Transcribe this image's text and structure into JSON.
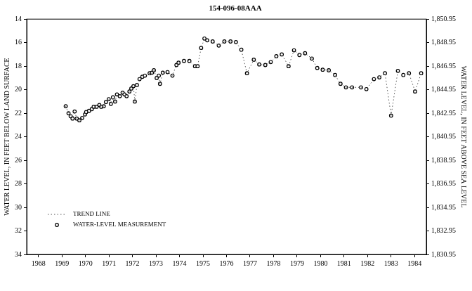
{
  "chart_data": {
    "type": "scatter",
    "title": "154-096-08AAA",
    "y_label": "WATER LEVEL, IN FEET BELOW LAND SURFACE",
    "y2_label": "WATER LEVEL, IN FEET ABOVE SEA LEVEL",
    "x": [
      1969.66,
      1969.78,
      1969.87,
      1969.95,
      1970.04,
      1970.13,
      1970.24,
      1970.36,
      1970.48,
      1970.53,
      1970.65,
      1970.77,
      1970.85,
      1970.97,
      1971.09,
      1971.17,
      1971.28,
      1971.37,
      1971.49,
      1971.58,
      1971.67,
      1971.76,
      1971.84,
      1971.96,
      1972.08,
      1972.16,
      1972.25,
      1972.37,
      1972.45,
      1972.54,
      1972.6,
      1972.69,
      1972.8,
      1972.92,
      1973.03,
      1973.23,
      1973.33,
      1973.41,
      1973.53,
      1973.62,
      1973.67,
      1973.79,
      1973.99,
      1974.2,
      1974.37,
      1974.46,
      1974.69,
      1974.92,
      1975.16,
      1975.27,
      1975.42,
      1975.56,
      1975.68,
      1975.91,
      1976.17,
      1976.41,
      1976.67,
      1976.9,
      1977.13,
      1977.37,
      1977.66,
      1977.89,
      1978.15,
      1978.38,
      1978.62,
      1978.85,
      1979.14,
      1979.37,
      1979.6,
      1979.84,
      1980.13,
      1980.36,
      1980.59,
      1980.85,
      1981.12,
      1981.35,
      1981.58,
      1981.84,
      1982.22,
      1982.45,
      1982.77,
      1983.0,
      1983.24,
      1983.5,
      1983.79,
      1984.02,
      1984.26,
      1984.52,
      1984.78
    ],
    "series": [
      {
        "name": "TREND LINE",
        "color": "#555555",
        "line_style": "dotted",
        "marker": "none",
        "values": [
          21.4,
          22.0,
          22.25,
          22.45,
          21.85,
          22.45,
          22.6,
          22.4,
          22.1,
          21.9,
          21.8,
          21.65,
          21.45,
          21.45,
          21.3,
          21.45,
          21.4,
          21.05,
          20.8,
          21.2,
          20.65,
          21.0,
          20.4,
          20.55,
          20.25,
          20.4,
          20.55,
          20.15,
          19.9,
          19.7,
          21.0,
          19.6,
          19.1,
          18.9,
          18.8,
          18.6,
          18.55,
          18.35,
          19.0,
          18.8,
          19.5,
          18.55,
          18.5,
          18.8,
          17.9,
          17.7,
          17.55,
          17.55,
          18.0,
          18.0,
          16.45,
          15.65,
          15.8,
          15.9,
          16.25,
          15.9,
          15.9,
          15.95,
          16.6,
          18.6,
          17.45,
          17.85,
          17.9,
          17.65,
          17.15,
          17.0,
          18.0,
          16.65,
          17.05,
          16.9,
          17.35,
          18.15,
          18.3,
          18.35,
          18.75,
          19.5,
          19.8,
          19.8,
          19.8,
          19.95,
          19.1,
          18.95,
          18.6,
          22.2,
          18.4,
          18.75,
          18.6,
          20.15,
          18.6
        ]
      },
      {
        "name": "WATER-LEVEL MEASUREMENT",
        "color": "#000000",
        "line_style": "none",
        "marker": "circle",
        "values": [
          21.4,
          22.0,
          22.25,
          22.45,
          21.85,
          22.45,
          22.6,
          22.4,
          22.1,
          21.9,
          21.8,
          21.65,
          21.45,
          21.45,
          21.3,
          21.45,
          21.4,
          21.05,
          20.8,
          21.2,
          20.65,
          21.0,
          20.4,
          20.55,
          20.25,
          20.4,
          20.55,
          20.15,
          19.9,
          19.7,
          21.0,
          19.6,
          19.1,
          18.9,
          18.8,
          18.6,
          18.55,
          18.35,
          19.0,
          18.8,
          19.5,
          18.55,
          18.5,
          18.8,
          17.9,
          17.7,
          17.55,
          17.55,
          18.0,
          18.0,
          16.45,
          15.65,
          15.8,
          15.9,
          16.25,
          15.9,
          15.9,
          15.95,
          16.6,
          18.6,
          17.45,
          17.85,
          17.9,
          17.65,
          17.15,
          17.0,
          18.0,
          16.65,
          17.05,
          16.9,
          17.35,
          18.15,
          18.3,
          18.35,
          18.75,
          19.5,
          19.8,
          19.8,
          19.8,
          19.95,
          19.1,
          18.95,
          18.6,
          22.2,
          18.4,
          18.75,
          18.6,
          20.15,
          18.6
        ]
      }
    ],
    "xlim": [
      1968,
      1985
    ],
    "xticks": [
      {
        "value": 1968.5,
        "label": "1968"
      },
      {
        "value": 1969.5,
        "label": "1969"
      },
      {
        "value": 1970.5,
        "label": "1970"
      },
      {
        "value": 1971.5,
        "label": "1971"
      },
      {
        "value": 1972.5,
        "label": "1972"
      },
      {
        "value": 1973.5,
        "label": "1973"
      },
      {
        "value": 1974.5,
        "label": "1974"
      },
      {
        "value": 1975.5,
        "label": "1975"
      },
      {
        "value": 1976.5,
        "label": "1976"
      },
      {
        "value": 1977.5,
        "label": "1977"
      },
      {
        "value": 1978.5,
        "label": "1978"
      },
      {
        "value": 1979.5,
        "label": "1979"
      },
      {
        "value": 1980.5,
        "label": "1980"
      },
      {
        "value": 1981.5,
        "label": "1981"
      },
      {
        "value": 1982.5,
        "label": "1982"
      },
      {
        "value": 1983.5,
        "label": "1983"
      },
      {
        "value": 1984.5,
        "label": "1984"
      }
    ],
    "ylim": [
      34,
      14
    ],
    "yticks": [
      14,
      16,
      18,
      20,
      22,
      24,
      26,
      28,
      30,
      32,
      34
    ],
    "y2lim": [
      1830.95,
      1850.95
    ],
    "y2ticks": [
      {
        "value": 1830.95,
        "label": "1,830.95"
      },
      {
        "value": 1832.95,
        "label": "1,832.95"
      },
      {
        "value": 1834.95,
        "label": "1,834.95"
      },
      {
        "value": 1836.95,
        "label": "1,836.95"
      },
      {
        "value": 1838.95,
        "label": "1,838.95"
      },
      {
        "value": 1840.95,
        "label": "1,840.95"
      },
      {
        "value": 1842.95,
        "label": "1,842.95"
      },
      {
        "value": 1844.95,
        "label": "1,844.95"
      },
      {
        "value": 1846.95,
        "label": "1,846.95"
      },
      {
        "value": 1848.95,
        "label": "1,848.95"
      },
      {
        "value": 1850.95,
        "label": "1,850.95"
      }
    ],
    "grid": false,
    "legend": "lower left"
  }
}
